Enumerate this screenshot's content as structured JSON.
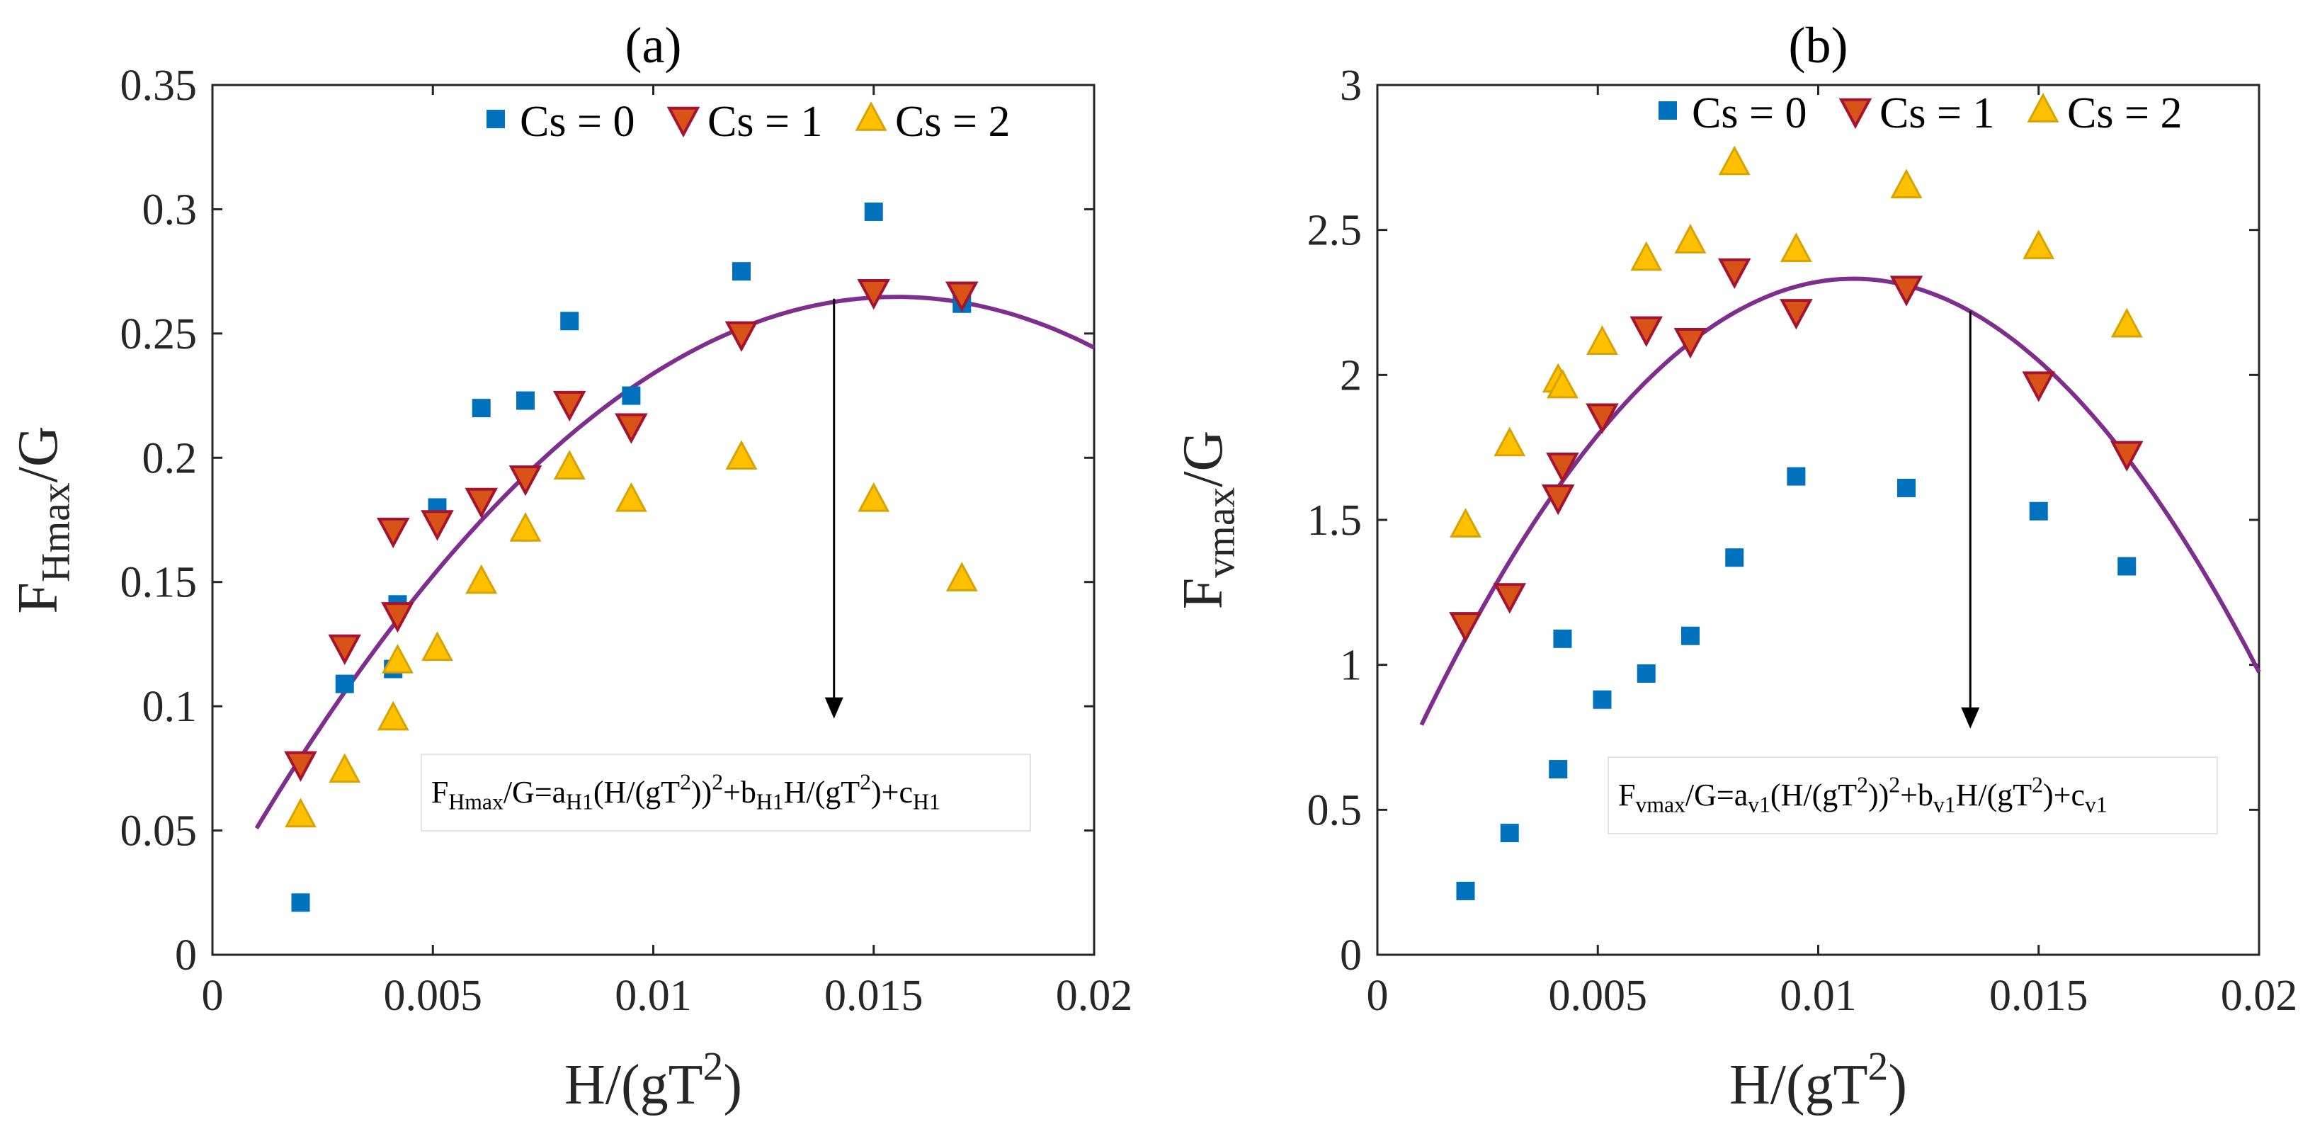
{
  "chart_data": [
    {
      "type": "scatter",
      "panel_label": "(a)",
      "xlabel": {
        "main": "H/(gT",
        "sup": "2",
        "tail": ")"
      },
      "ylabel": {
        "main": "F",
        "sub": "Hmax",
        "tail": "/G"
      },
      "xlim": [
        0,
        0.02
      ],
      "ylim": [
        0,
        0.35
      ],
      "xticks": [
        "0",
        "0.005",
        "0.01",
        "0.015",
        "0.02"
      ],
      "yticks": [
        "0",
        "0.05",
        "0.1",
        "0.15",
        "0.2",
        "0.25",
        "0.3",
        "0.35"
      ],
      "legend_position": "top-right",
      "series": [
        {
          "name": "Cs = 0",
          "marker": "square",
          "color": "#0072BD",
          "points": [
            [
              0.002,
              0.021
            ],
            [
              0.003,
              0.109
            ],
            [
              0.0041,
              0.115
            ],
            [
              0.0042,
              0.141
            ],
            [
              0.0051,
              0.18
            ],
            [
              0.0061,
              0.22
            ],
            [
              0.0071,
              0.223
            ],
            [
              0.0081,
              0.255
            ],
            [
              0.0095,
              0.225
            ],
            [
              0.012,
              0.275
            ],
            [
              0.015,
              0.299
            ],
            [
              0.017,
              0.262
            ]
          ]
        },
        {
          "name": "Cs = 1",
          "marker": "triangle-down",
          "color": "#D95319",
          "points": [
            [
              0.002,
              0.077
            ],
            [
              0.003,
              0.124
            ],
            [
              0.0041,
              0.171
            ],
            [
              0.0042,
              0.137
            ],
            [
              0.0051,
              0.174
            ],
            [
              0.0061,
              0.183
            ],
            [
              0.0071,
              0.192
            ],
            [
              0.0081,
              0.222
            ],
            [
              0.0095,
              0.213
            ],
            [
              0.012,
              0.25
            ],
            [
              0.015,
              0.267
            ],
            [
              0.017,
              0.266
            ]
          ]
        },
        {
          "name": "Cs = 2",
          "marker": "triangle-up",
          "color": "#EDB120",
          "points": [
            [
              0.002,
              0.056
            ],
            [
              0.003,
              0.074
            ],
            [
              0.0041,
              0.095
            ],
            [
              0.0042,
              0.118
            ],
            [
              0.0051,
              0.123
            ],
            [
              0.0061,
              0.15
            ],
            [
              0.0071,
              0.171
            ],
            [
              0.0081,
              0.196
            ],
            [
              0.0095,
              0.183
            ],
            [
              0.012,
              0.2
            ],
            [
              0.015,
              0.183
            ],
            [
              0.017,
              0.151
            ]
          ]
        }
      ],
      "fit_curve": {
        "color": "#7E2F8E",
        "x": [
          0.001,
          0.02
        ],
        "coefficients": {
          "a": -1015.2,
          "b": 31.5,
          "c": 0.0204
        }
      },
      "annotation": {
        "parts": [
          {
            "t": "F"
          },
          {
            "t": "Hmax",
            "s": "sub"
          },
          {
            "t": "/G=a"
          },
          {
            "t": "H1",
            "s": "sub"
          },
          {
            "t": "(H/(gT"
          },
          {
            "t": "2",
            "s": "sup"
          },
          {
            "t": "))"
          },
          {
            "t": "2",
            "s": "sup"
          },
          {
            "t": "+b"
          },
          {
            "t": "H1",
            "s": "sub"
          },
          {
            "t": "H/(gT"
          },
          {
            "t": "2",
            "s": "sup"
          },
          {
            "t": ")+c"
          },
          {
            "t": "H1",
            "s": "sub"
          }
        ],
        "arrow_from": [
          0.0141,
          0.264
        ],
        "arrow_to": [
          0.0141,
          0.095
        ],
        "box_at": [
          0.0053,
          0.063
        ]
      }
    },
    {
      "type": "scatter",
      "panel_label": "(b)",
      "xlabel": {
        "main": "H/(gT",
        "sup": "2",
        "tail": ")"
      },
      "ylabel": {
        "main": "F",
        "sub": "vmax",
        "tail": "/G"
      },
      "xlim": [
        0,
        0.02
      ],
      "ylim": [
        0,
        3
      ],
      "xticks": [
        "0",
        "0.005",
        "0.01",
        "0.015",
        "0.02"
      ],
      "yticks": [
        "0",
        "0.5",
        "1",
        "1.5",
        "2",
        "2.5",
        "3"
      ],
      "legend_position": "top-right",
      "series": [
        {
          "name": "Cs = 0",
          "marker": "square",
          "color": "#0072BD",
          "points": [
            [
              0.002,
              0.22
            ],
            [
              0.003,
              0.42
            ],
            [
              0.0041,
              0.64
            ],
            [
              0.0042,
              1.09
            ],
            [
              0.0051,
              0.88
            ],
            [
              0.0061,
              0.97
            ],
            [
              0.0071,
              1.1
            ],
            [
              0.0081,
              1.37
            ],
            [
              0.0095,
              1.65
            ],
            [
              0.012,
              1.61
            ],
            [
              0.015,
              1.53
            ],
            [
              0.017,
              1.34
            ]
          ]
        },
        {
          "name": "Cs = 1",
          "marker": "triangle-down",
          "color": "#D95319",
          "points": [
            [
              0.002,
              1.14
            ],
            [
              0.003,
              1.24
            ],
            [
              0.0041,
              1.58
            ],
            [
              0.0042,
              1.69
            ],
            [
              0.0051,
              1.86
            ],
            [
              0.0061,
              2.16
            ],
            [
              0.0071,
              2.12
            ],
            [
              0.0081,
              2.36
            ],
            [
              0.0095,
              2.22
            ],
            [
              0.012,
              2.3
            ],
            [
              0.015,
              1.97
            ],
            [
              0.017,
              1.73
            ]
          ]
        },
        {
          "name": "Cs = 2",
          "marker": "triangle-up",
          "color": "#EDB120",
          "points": [
            [
              0.002,
              1.48
            ],
            [
              0.003,
              1.76
            ],
            [
              0.0041,
              1.98
            ],
            [
              0.0042,
              1.96
            ],
            [
              0.0051,
              2.11
            ],
            [
              0.0061,
              2.4
            ],
            [
              0.0071,
              2.46
            ],
            [
              0.0081,
              2.73
            ],
            [
              0.0095,
              2.43
            ],
            [
              0.012,
              2.65
            ],
            [
              0.015,
              2.44
            ],
            [
              0.017,
              2.17
            ]
          ]
        }
      ],
      "fit_curve": {
        "color": "#7E2F8E",
        "x": [
          0.001,
          0.02
        ],
        "coefficients": {
          "a": -16025,
          "b": 346.1,
          "c": 0.463
        }
      },
      "annotation": {
        "parts": [
          {
            "t": "F"
          },
          {
            "t": "vmax",
            "s": "sub"
          },
          {
            "t": "/G=a"
          },
          {
            "t": "v1",
            "s": "sub"
          },
          {
            "t": "(H/(gT"
          },
          {
            "t": "2",
            "s": "sup"
          },
          {
            "t": "))"
          },
          {
            "t": "2",
            "s": "sup"
          },
          {
            "t": "+b"
          },
          {
            "t": "v1",
            "s": "sub"
          },
          {
            "t": "H/(gT"
          },
          {
            "t": "2",
            "s": "sup"
          },
          {
            "t": ")+c"
          },
          {
            "t": "v1",
            "s": "sub"
          }
        ],
        "arrow_from": [
          0.01345,
          2.22
        ],
        "arrow_to": [
          0.01345,
          0.78
        ],
        "box_at": [
          0.0058,
          0.53
        ]
      }
    }
  ]
}
